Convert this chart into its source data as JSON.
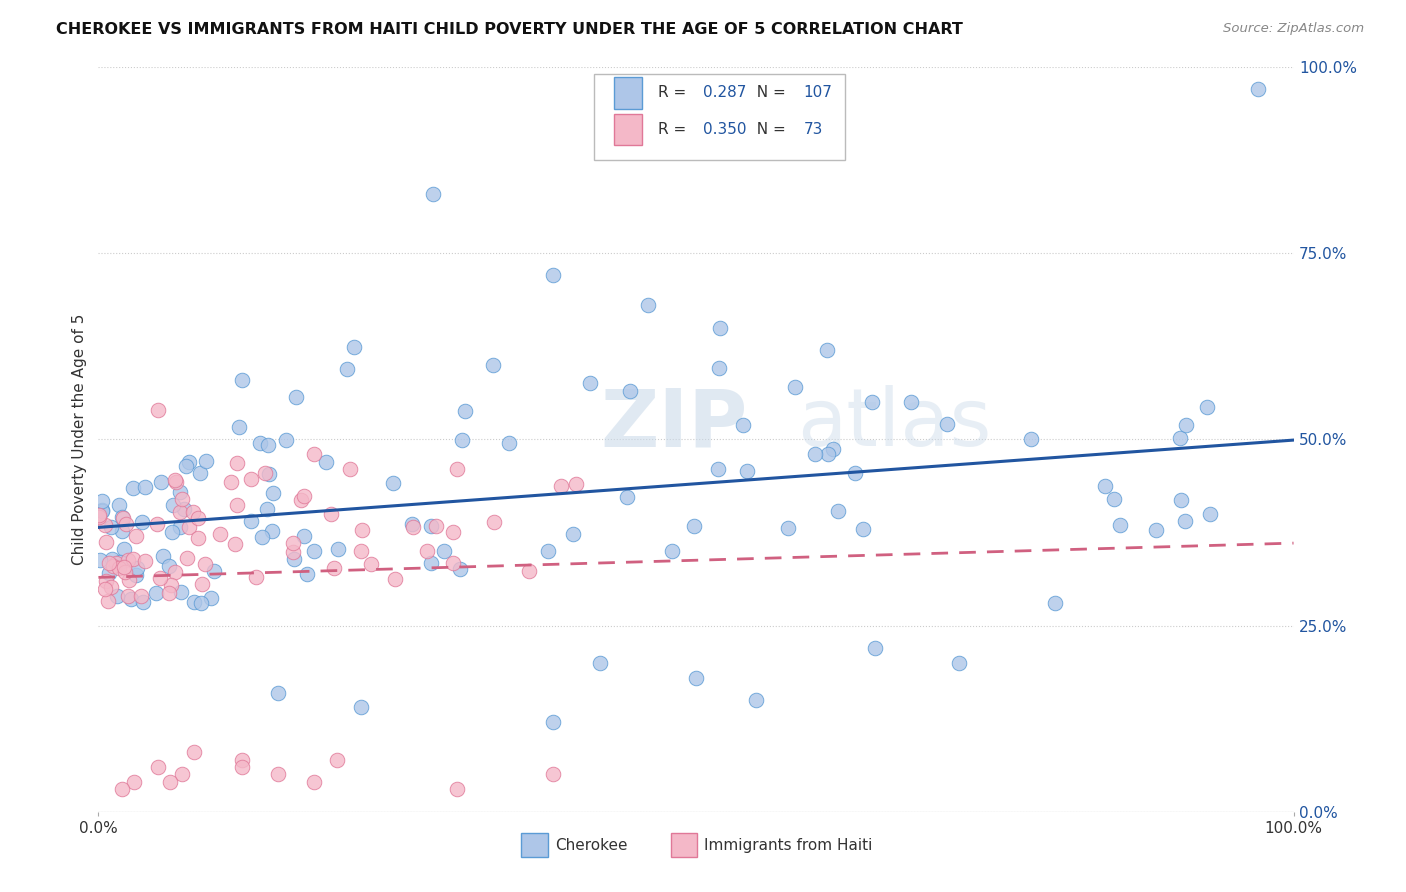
{
  "title": "CHEROKEE VS IMMIGRANTS FROM HAITI CHILD POVERTY UNDER THE AGE OF 5 CORRELATION CHART",
  "source": "Source: ZipAtlas.com",
  "ylabel": "Child Poverty Under the Age of 5",
  "ytick_labels": [
    "100.0%",
    "75.0%",
    "50.0%",
    "25.0%",
    "0.0%"
  ],
  "ytick_values": [
    1.0,
    0.75,
    0.5,
    0.25,
    0.0
  ],
  "xtick_labels": [
    "0.0%",
    "100.0%"
  ],
  "xtick_values": [
    0.0,
    1.0
  ],
  "bottom_legend": [
    "Cherokee",
    "Immigrants from Haiti"
  ],
  "watermark_part1": "ZIP",
  "watermark_part2": "atlas",
  "cherokee_color": "#aec6e8",
  "cherokee_edge": "#5b9bd5",
  "haiti_color": "#f4b8c8",
  "haiti_edge": "#e07898",
  "cherokee_line_color": "#2155a0",
  "haiti_line_color": "#d06080",
  "background_color": "#ffffff",
  "grid_color": "#cccccc",
  "xlim": [
    0.0,
    1.0
  ],
  "ylim": [
    0.0,
    1.0
  ],
  "R_cherokee": "0.287",
  "N_cherokee": "107",
  "R_haiti": "0.350",
  "N_haiti": "73",
  "label_color": "#2155a0",
  "text_color": "#333333"
}
